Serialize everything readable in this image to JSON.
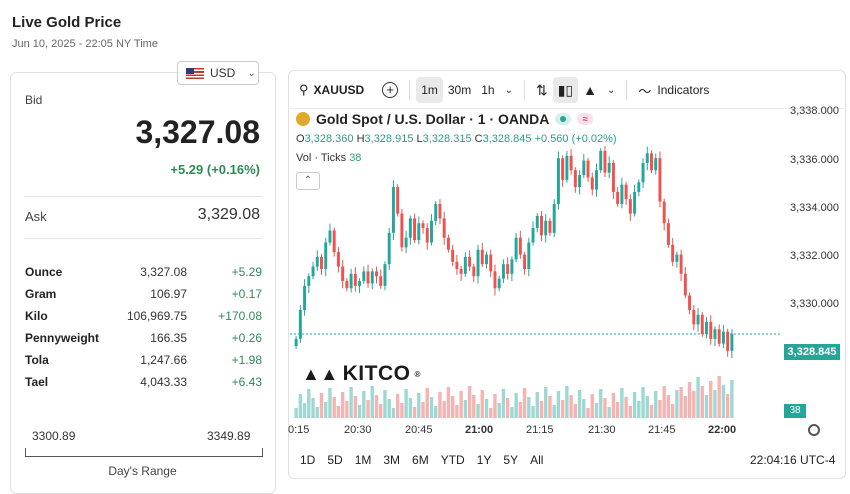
{
  "header": {
    "title": "Live Gold Price",
    "subtitle": "Jun 10, 2025 - 22:05 NY Time"
  },
  "currency": {
    "selected": "USD",
    "flag_icon": "us-flag-icon"
  },
  "bid": {
    "label": "Bid",
    "value": "3,327.08",
    "change": "+5.29 (+0.16%)"
  },
  "ask": {
    "label": "Ask",
    "value": "3,329.08"
  },
  "units": [
    {
      "name": "Ounce",
      "value": "3,327.08",
      "change": "+5.29"
    },
    {
      "name": "Gram",
      "value": "106.97",
      "change": "+0.17"
    },
    {
      "name": "Kilo",
      "value": "106,969.75",
      "change": "+170.08"
    },
    {
      "name": "Pennyweight",
      "value": "166.35",
      "change": "+0.26"
    },
    {
      "name": "Tola",
      "value": "1,247.66",
      "change": "+1.98"
    },
    {
      "name": "Tael",
      "value": "4,043.33",
      "change": "+6.43"
    }
  ],
  "day_range": {
    "low": "3300.89",
    "high": "3349.89",
    "label": "Day's Range"
  },
  "toolbar": {
    "symbol": "XAUUSD",
    "intervals": [
      "1m",
      "30m",
      "1h"
    ],
    "active_interval": "1m",
    "indicators_label": "Indicators"
  },
  "legend": {
    "title": "Gold Spot / U.S. Dollar · 1 · OANDA",
    "o_label": "O",
    "o": "3,328.360",
    "h_label": "H",
    "h": "3,328.915",
    "l_label": "L",
    "l": "3,328.315",
    "c_label": "C",
    "c": "3,328.845",
    "chg": "+0.560 (+0.02%)",
    "vol_label": "Vol · Ticks",
    "vol": "38"
  },
  "last_price_tag": "3,328.845",
  "last_volume_tag": "38",
  "logo_text": "KITCO",
  "range_buttons": [
    "1D",
    "5D",
    "1M",
    "3M",
    "6M",
    "YTD",
    "1Y",
    "5Y",
    "All"
  ],
  "clock": "22:04:16 UTC-4",
  "colors": {
    "up": "#26a69a",
    "down": "#ef5350",
    "vol_up": "#9fd8d2",
    "vol_down": "#f5b3b1",
    "positive_text": "#2e8b57"
  },
  "chart_data": {
    "type": "candlestick",
    "y_ticks": [
      "3,338.000",
      "3,336.000",
      "3,334.000",
      "3,332.000",
      "3,330.000",
      "3,328.000"
    ],
    "x_ticks": [
      "0:15",
      "20:30",
      "20:45",
      "21:00",
      "21:15",
      "21:30",
      "21:45",
      "22:00"
    ],
    "ylim": [
      3327.1,
      3338.1
    ],
    "closes": [
      3328.6,
      3329.8,
      3330.8,
      3331.2,
      3331.6,
      3332.0,
      3331.5,
      3332.6,
      3333.1,
      3332.2,
      3331.6,
      3331.0,
      3330.7,
      3331.3,
      3330.8,
      3331.0,
      3331.4,
      3330.9,
      3331.4,
      3331.2,
      3330.8,
      3331.7,
      3333.0,
      3334.9,
      3333.8,
      3332.4,
      3332.8,
      3333.6,
      3332.7,
      3333.4,
      3333.2,
      3332.6,
      3333.5,
      3334.2,
      3333.6,
      3332.8,
      3332.3,
      3331.8,
      3331.5,
      3331.3,
      3332.0,
      3331.6,
      3331.2,
      3332.3,
      3331.7,
      3332.1,
      3331.4,
      3330.7,
      3331.1,
      3331.7,
      3331.3,
      3331.9,
      3332.8,
      3332.1,
      3331.5,
      3332.6,
      3333.2,
      3333.7,
      3332.9,
      3333.5,
      3333.0,
      3334.2,
      3336.1,
      3335.2,
      3336.2,
      3335.6,
      3334.9,
      3335.4,
      3336.0,
      3335.3,
      3334.8,
      3335.6,
      3336.4,
      3335.5,
      3335.9,
      3334.7,
      3334.2,
      3335.0,
      3334.4,
      3333.8,
      3334.7,
      3335.1,
      3335.9,
      3336.3,
      3335.6,
      3336.1,
      3334.3,
      3333.4,
      3332.5,
      3331.8,
      3332.1,
      3331.3,
      3330.4,
      3329.8,
      3329.2,
      3329.6,
      3328.8,
      3329.3,
      3328.6,
      3329.0,
      3328.4,
      3328.9,
      3328.1,
      3328.8
    ]
  }
}
